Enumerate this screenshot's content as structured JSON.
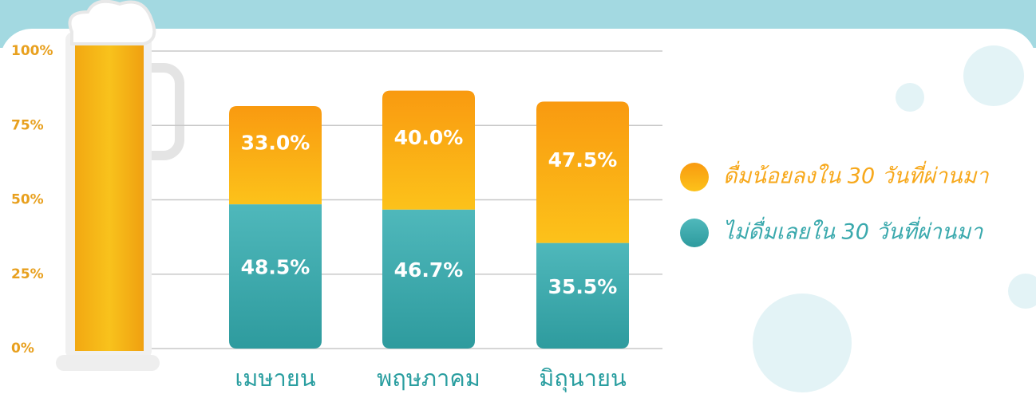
{
  "chart_data": {
    "type": "stacked_bar",
    "categories": [
      "เมษายน",
      "พฤษภาคม",
      "มิถุนายน"
    ],
    "series": [
      {
        "name": "ไม่ดื่มเลยใน 30 วันที่ผ่านมา",
        "color": "#3aa9ad",
        "values": [
          48.5,
          46.7,
          35.5
        ],
        "value_labels": [
          "48.5%",
          "46.7%",
          "35.5%"
        ]
      },
      {
        "name": "ดื่มน้อยลงใน 30 วันที่ผ่านมา",
        "color": "#f7a81b",
        "values": [
          33.0,
          40.0,
          47.5
        ],
        "value_labels": [
          "33.0%",
          "40.0%",
          "47.5%"
        ]
      }
    ],
    "ylim": [
      0,
      100
    ],
    "yticks": [
      {
        "value": 0,
        "label": "0%"
      },
      {
        "value": 25,
        "label": "25%"
      },
      {
        "value": 50,
        "label": "50%"
      },
      {
        "value": 75,
        "label": "75%"
      },
      {
        "value": 100,
        "label": "100%"
      }
    ],
    "grid": true,
    "legend": "right"
  }
}
